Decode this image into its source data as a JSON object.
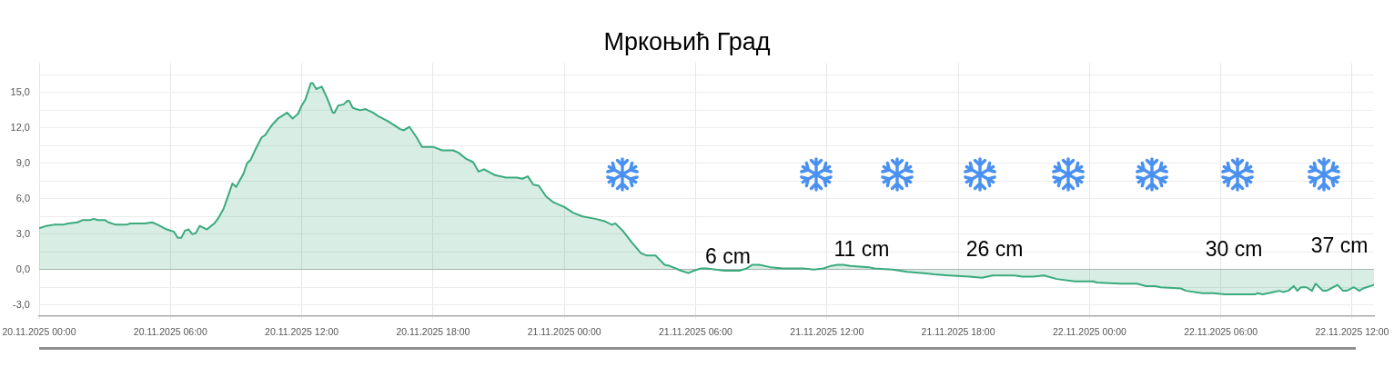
{
  "chart_data": {
    "type": "area",
    "title": "Мркоњић Град",
    "color": "#3aaa7c",
    "marker": "none",
    "line_style": "solid",
    "grid": true,
    "x": [
      "2025-11-20T00:00",
      "2025-11-20T00:20",
      "2025-11-20T00:40",
      "2025-11-20T01:05",
      "2025-11-20T01:20",
      "2025-11-20T01:45",
      "2025-11-20T02:00",
      "2025-11-20T02:20",
      "2025-11-20T02:30",
      "2025-11-20T02:40",
      "2025-11-20T03:00",
      "2025-11-20T03:10",
      "2025-11-20T03:30",
      "2025-11-20T04:00",
      "2025-11-20T04:10",
      "2025-11-20T04:50",
      "2025-11-20T05:10",
      "2025-11-20T05:25",
      "2025-11-20T05:50",
      "2025-11-20T06:10",
      "2025-11-20T06:20",
      "2025-11-20T06:30",
      "2025-11-20T06:40",
      "2025-11-20T06:50",
      "2025-11-20T07:00",
      "2025-11-20T07:10",
      "2025-11-20T07:20",
      "2025-11-20T07:40",
      "2025-11-20T08:00",
      "2025-11-20T08:10",
      "2025-11-20T08:25",
      "2025-11-20T08:40",
      "2025-11-20T08:50",
      "2025-11-20T09:00",
      "2025-11-20T09:20",
      "2025-11-20T09:30",
      "2025-11-20T09:40",
      "2025-11-20T09:55",
      "2025-11-20T10:10",
      "2025-11-20T10:20",
      "2025-11-20T10:35",
      "2025-11-20T10:40",
      "2025-11-20T10:55",
      "2025-11-20T11:10",
      "2025-11-20T11:20",
      "2025-11-20T11:35",
      "2025-11-20T11:50",
      "2025-11-20T12:00",
      "2025-11-20T12:10",
      "2025-11-20T12:25",
      "2025-11-20T12:30",
      "2025-11-20T12:40",
      "2025-11-20T12:55",
      "2025-11-20T13:10",
      "2025-11-20T13:25",
      "2025-11-20T13:30",
      "2025-11-20T13:40",
      "2025-11-20T13:55",
      "2025-11-20T14:05",
      "2025-11-20T14:10",
      "2025-11-20T14:20",
      "2025-11-20T14:40",
      "2025-11-20T14:55",
      "2025-11-20T15:15",
      "2025-11-20T15:30",
      "2025-11-20T15:55",
      "2025-11-20T16:10",
      "2025-11-20T16:30",
      "2025-11-20T16:40",
      "2025-11-20T16:55",
      "2025-11-20T17:15",
      "2025-11-20T17:30",
      "2025-11-20T18:00",
      "2025-11-20T18:25",
      "2025-11-20T18:55",
      "2025-11-20T19:10",
      "2025-11-20T19:30",
      "2025-11-20T19:50",
      "2025-11-20T20:05",
      "2025-11-20T20:20",
      "2025-11-20T20:50",
      "2025-11-20T21:20",
      "2025-11-20T21:50",
      "2025-11-20T22:05",
      "2025-11-20T22:20",
      "2025-11-20T22:35",
      "2025-11-20T22:50",
      "2025-11-20T23:10",
      "2025-11-20T23:30",
      "2025-11-21T00:00",
      "2025-11-21T00:25",
      "2025-11-21T00:50",
      "2025-11-21T01:25",
      "2025-11-21T01:50",
      "2025-11-21T02:10",
      "2025-11-21T02:20",
      "2025-11-21T02:40",
      "2025-11-21T03:05",
      "2025-11-21T03:30",
      "2025-11-21T03:45",
      "2025-11-21T04:10",
      "2025-11-21T04:35",
      "2025-11-21T04:50",
      "2025-11-21T05:20",
      "2025-11-21T05:40",
      "2025-11-21T05:55",
      "2025-11-21T06:15",
      "2025-11-21T06:30",
      "2025-11-21T06:55",
      "2025-11-21T07:20",
      "2025-11-21T08:00",
      "2025-11-21T08:20",
      "2025-11-21T08:35",
      "2025-11-21T08:55",
      "2025-11-21T09:25",
      "2025-11-21T10:00",
      "2025-11-21T10:15",
      "2025-11-21T10:55",
      "2025-11-21T11:25",
      "2025-11-21T11:50",
      "2025-11-21T12:10",
      "2025-11-21T12:30",
      "2025-11-21T12:45",
      "2025-11-21T13:05",
      "2025-11-21T13:55",
      "2025-11-21T14:10",
      "2025-11-21T15:00",
      "2025-11-21T15:40",
      "2025-11-21T16:25",
      "2025-11-21T16:55",
      "2025-11-21T17:35",
      "2025-11-21T18:30",
      "2025-11-21T19:05",
      "2025-11-21T19:35",
      "2025-11-21T20:35",
      "2025-11-21T20:55",
      "2025-11-21T21:25",
      "2025-11-21T21:55",
      "2025-11-21T22:30",
      "2025-11-21T23:20",
      "2025-11-22T00:10",
      "2025-11-22T00:20",
      "2025-11-22T01:25",
      "2025-11-22T01:50",
      "2025-11-22T02:10",
      "2025-11-22T02:35",
      "2025-11-22T03:00",
      "2025-11-22T03:15",
      "2025-11-22T04:10",
      "2025-11-22T04:25",
      "2025-11-22T05:10",
      "2025-11-22T05:40",
      "2025-11-22T06:10",
      "2025-11-22T07:35",
      "2025-11-22T07:40",
      "2025-11-22T07:55",
      "2025-11-22T08:10",
      "2025-11-22T08:25",
      "2025-11-22T08:40",
      "2025-11-22T08:50",
      "2025-11-22T09:05",
      "2025-11-22T09:20",
      "2025-11-22T09:30",
      "2025-11-22T09:40",
      "2025-11-22T09:55",
      "2025-11-22T10:10",
      "2025-11-22T10:20",
      "2025-11-22T10:40",
      "2025-11-22T10:50",
      "2025-11-22T11:20",
      "2025-11-22T11:35",
      "2025-11-22T11:45",
      "2025-11-22T12:05",
      "2025-11-22T12:20",
      "2025-11-22T12:30",
      "2025-11-22T12:50",
      "2025-11-22T13:00"
    ],
    "values": [
      3.5,
      3.7,
      3.8,
      3.8,
      3.9,
      4.0,
      4.2,
      4.2,
      4.3,
      4.2,
      4.2,
      4.0,
      3.8,
      3.8,
      3.9,
      3.9,
      4.0,
      3.8,
      3.4,
      3.2,
      2.7,
      2.7,
      3.3,
      3.4,
      3.0,
      3.1,
      3.7,
      3.4,
      3.9,
      4.3,
      5.1,
      6.4,
      7.3,
      7.0,
      8.1,
      9.0,
      9.3,
      10.3,
      11.2,
      11.4,
      12.1,
      12.3,
      12.8,
      13.1,
      13.3,
      12.8,
      13.2,
      13.9,
      14.4,
      15.8,
      15.8,
      15.3,
      15.5,
      14.5,
      13.3,
      13.3,
      13.9,
      14.0,
      14.3,
      14.3,
      13.7,
      13.5,
      13.6,
      13.3,
      13.0,
      12.6,
      12.3,
      11.9,
      11.8,
      12.1,
      11.2,
      10.4,
      10.4,
      10.1,
      10.1,
      9.9,
      9.4,
      9.1,
      8.3,
      8.5,
      8.0,
      7.8,
      7.8,
      7.7,
      7.9,
      7.2,
      7.1,
      6.2,
      5.7,
      5.3,
      4.8,
      4.5,
      4.3,
      4.1,
      3.8,
      3.9,
      3.3,
      2.3,
      1.4,
      1.2,
      1.2,
      0.4,
      0.3,
      -0.1,
      -0.3,
      -0.1,
      0.1,
      0.1,
      0.0,
      -0.1,
      -0.1,
      0.1,
      0.4,
      0.4,
      0.2,
      0.1,
      0.1,
      0.1,
      0.0,
      0.1,
      0.3,
      0.4,
      0.4,
      0.3,
      0.2,
      0.1,
      0.0,
      -0.2,
      -0.3,
      -0.4,
      -0.5,
      -0.6,
      -0.7,
      -0.5,
      -0.5,
      -0.6,
      -0.6,
      -0.5,
      -0.8,
      -1.0,
      -1.0,
      -1.1,
      -1.2,
      -1.2,
      -1.2,
      -1.4,
      -1.4,
      -1.5,
      -1.6,
      -1.8,
      -2.0,
      -2.0,
      -2.1,
      -2.1,
      -2.0,
      -2.1,
      -2.0,
      -1.9,
      -1.8,
      -1.9,
      -1.8,
      -1.4,
      -1.8,
      -1.5,
      -1.5,
      -1.8,
      -1.2,
      -1.8,
      -1.8,
      -1.3,
      -1.8,
      -1.8,
      -1.5,
      -1.8,
      -1.6,
      -1.4,
      -1.3
    ],
    "xlim": [
      "2025-11-20T00:00",
      "2025-11-22T13:00"
    ],
    "xticks": [
      {
        "value": "2025-11-20T00:00",
        "label": "20.11.2025 00:00"
      },
      {
        "value": "2025-11-20T06:00",
        "label": "20.11.2025 06:00"
      },
      {
        "value": "2025-11-20T12:00",
        "label": "20.11.2025 12:00"
      },
      {
        "value": "2025-11-20T18:00",
        "label": "20.11.2025 18:00"
      },
      {
        "value": "2025-11-21T00:00",
        "label": "21.11.2025 00:00"
      },
      {
        "value": "2025-11-21T06:00",
        "label": "21.11.2025 06:00"
      },
      {
        "value": "2025-11-21T12:00",
        "label": "21.11.2025 12:00"
      },
      {
        "value": "2025-11-21T18:00",
        "label": "21.11.2025 18:00"
      },
      {
        "value": "2025-11-22T00:00",
        "label": "22.11.2025 00:00"
      },
      {
        "value": "2025-11-22T06:00",
        "label": "22.11.2025 06:00"
      },
      {
        "value": "2025-11-22T12:00",
        "label": "22.11.2025 12:00"
      }
    ],
    "ylim": [
      -3.9,
      17.5
    ],
    "yticks": [
      {
        "value": -3,
        "label": "-3,0"
      },
      {
        "value": -1.5,
        "label": null
      },
      {
        "value": 0,
        "label": "0,0"
      },
      {
        "value": 1.5,
        "label": null
      },
      {
        "value": 3,
        "label": "3,0"
      },
      {
        "value": 4.5,
        "label": null
      },
      {
        "value": 6,
        "label": "6,0"
      },
      {
        "value": 7.5,
        "label": null
      },
      {
        "value": 9,
        "label": "9,0"
      },
      {
        "value": 10.5,
        "label": null
      },
      {
        "value": 12,
        "label": "12,0"
      },
      {
        "value": 13.5,
        "label": null
      },
      {
        "value": 15,
        "label": "15,0"
      },
      {
        "value": 16.5,
        "label": null
      }
    ],
    "annotations": [
      "6 cm",
      "11 cm",
      "26 cm",
      "30 cm",
      "37 cm"
    ]
  }
}
